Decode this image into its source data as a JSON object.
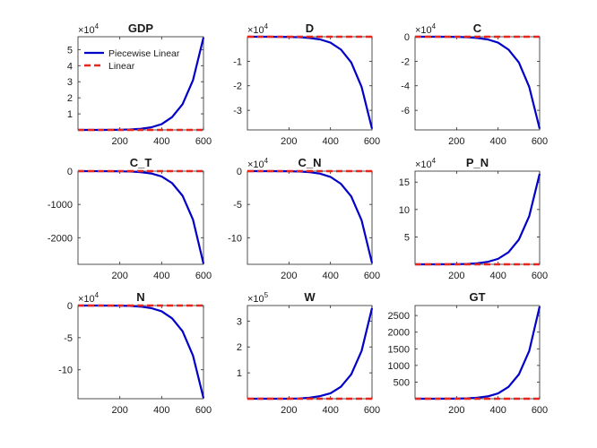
{
  "chart_data": [
    {
      "id": "gdp",
      "type": "line",
      "title": "GDP",
      "exponent": "4",
      "xlim": [
        0,
        600
      ],
      "ylim": [
        0,
        5.8
      ],
      "xticks": [
        200,
        400,
        600
      ],
      "yticks": [
        1,
        2,
        3,
        4,
        5
      ],
      "xticklabels": [
        "200",
        "400",
        "600"
      ],
      "yticklabels": [
        "1",
        "2",
        "3",
        "4",
        "5"
      ],
      "x": [
        0,
        100,
        200,
        250,
        300,
        350,
        400,
        450,
        500,
        550,
        600
      ],
      "series": [
        {
          "name": "Piecewise Linear",
          "values": [
            0,
            0.0,
            0.01,
            0.03,
            0.07,
            0.16,
            0.36,
            0.8,
            1.6,
            3.1,
            5.75
          ]
        },
        {
          "name": "Linear",
          "values": [
            0,
            0,
            0,
            0,
            0,
            0,
            0,
            0,
            0,
            0,
            0
          ]
        }
      ],
      "legend": {
        "position": "top-left",
        "entries": [
          "Piecewise Linear",
          "Linear"
        ]
      }
    },
    {
      "id": "d",
      "type": "line",
      "title": "D",
      "exponent": "4",
      "xlim": [
        0,
        600
      ],
      "ylim": [
        -3.8,
        0
      ],
      "xticks": [
        200,
        400,
        600
      ],
      "yticks": [
        -1,
        -2,
        -3
      ],
      "xticklabels": [
        "200",
        "400",
        "600"
      ],
      "yticklabels": [
        "-1",
        "-2",
        "-3"
      ],
      "x": [
        0,
        100,
        200,
        250,
        300,
        350,
        400,
        450,
        500,
        550,
        600
      ],
      "series": [
        {
          "name": "Piecewise Linear",
          "values": [
            0,
            0.0,
            -0.01,
            -0.02,
            -0.05,
            -0.11,
            -0.24,
            -0.52,
            -1.05,
            -2.05,
            -3.75
          ]
        },
        {
          "name": "Linear",
          "values": [
            0,
            0,
            0,
            0,
            0,
            0,
            0,
            0,
            0,
            0,
            0
          ]
        }
      ]
    },
    {
      "id": "c",
      "type": "line",
      "title": "C",
      "exponent": "4",
      "xlim": [
        0,
        600
      ],
      "ylim": [
        -7.6,
        0
      ],
      "xticks": [
        200,
        400,
        600
      ],
      "yticks": [
        0,
        -2,
        -4,
        -6
      ],
      "xticklabels": [
        "200",
        "400",
        "600"
      ],
      "yticklabels": [
        "0",
        "-2",
        "-4",
        "-6"
      ],
      "x": [
        0,
        100,
        200,
        250,
        300,
        350,
        400,
        450,
        500,
        550,
        600
      ],
      "series": [
        {
          "name": "Piecewise Linear",
          "values": [
            0,
            0.0,
            -0.01,
            -0.04,
            -0.1,
            -0.22,
            -0.48,
            -1.05,
            -2.1,
            -4.1,
            -7.5
          ]
        },
        {
          "name": "Linear",
          "values": [
            0,
            0,
            0,
            0,
            0,
            0,
            0,
            0,
            0,
            0,
            0
          ]
        }
      ]
    },
    {
      "id": "c_t",
      "type": "line",
      "title": "C_T",
      "exponent": "",
      "xlim": [
        0,
        600
      ],
      "ylim": [
        -2800,
        0
      ],
      "xticks": [
        200,
        400,
        600
      ],
      "yticks": [
        0,
        -1000,
        -2000
      ],
      "xticklabels": [
        "200",
        "400",
        "600"
      ],
      "yticklabels": [
        "0",
        "-1000",
        "-2000"
      ],
      "x": [
        0,
        100,
        200,
        250,
        300,
        350,
        400,
        450,
        500,
        550,
        600
      ],
      "series": [
        {
          "name": "Piecewise Linear",
          "values": [
            0,
            -1,
            -5,
            -12,
            -30,
            -70,
            -160,
            -360,
            -740,
            -1460,
            -2780
          ]
        },
        {
          "name": "Linear",
          "values": [
            0,
            0,
            0,
            0,
            0,
            0,
            0,
            0,
            0,
            0,
            0
          ]
        }
      ]
    },
    {
      "id": "c_n",
      "type": "line",
      "title": "C_N",
      "exponent": "4",
      "xlim": [
        0,
        600
      ],
      "ylim": [
        -14,
        0
      ],
      "xticks": [
        200,
        400,
        600
      ],
      "yticks": [
        0,
        -5,
        -10
      ],
      "xticklabels": [
        "200",
        "400",
        "600"
      ],
      "yticklabels": [
        "0",
        "-5",
        "-10"
      ],
      "x": [
        0,
        100,
        200,
        250,
        300,
        350,
        400,
        450,
        500,
        550,
        600
      ],
      "series": [
        {
          "name": "Piecewise Linear",
          "values": [
            0,
            0.0,
            -0.02,
            -0.06,
            -0.16,
            -0.38,
            -0.86,
            -1.9,
            -3.8,
            -7.4,
            -13.8
          ]
        },
        {
          "name": "Linear",
          "values": [
            0,
            0,
            0,
            0,
            0,
            0,
            0,
            0,
            0,
            0,
            0
          ]
        }
      ]
    },
    {
      "id": "p_n",
      "type": "line",
      "title": "P_N",
      "exponent": "4",
      "xlim": [
        0,
        600
      ],
      "ylim": [
        0,
        17
      ],
      "xticks": [
        200,
        400,
        600
      ],
      "yticks": [
        5,
        10,
        15
      ],
      "xticklabels": [
        "200",
        "400",
        "600"
      ],
      "yticklabels": [
        "5",
        "10",
        "15"
      ],
      "x": [
        0,
        100,
        200,
        250,
        300,
        350,
        400,
        450,
        500,
        550,
        600
      ],
      "series": [
        {
          "name": "Piecewise Linear",
          "values": [
            0,
            0.0,
            0.02,
            0.07,
            0.19,
            0.45,
            1.0,
            2.2,
            4.5,
            8.8,
            16.5
          ]
        },
        {
          "name": "Linear",
          "values": [
            0,
            0,
            0,
            0,
            0,
            0,
            0,
            0,
            0,
            0,
            0
          ]
        }
      ]
    },
    {
      "id": "n",
      "type": "line",
      "title": "N",
      "exponent": "4",
      "xlim": [
        0,
        600
      ],
      "ylim": [
        -14.5,
        0
      ],
      "xticks": [
        200,
        400,
        600
      ],
      "yticks": [
        0,
        -5,
        -10
      ],
      "xticklabels": [
        "200",
        "400",
        "600"
      ],
      "yticklabels": [
        "0",
        "-5",
        "-10"
      ],
      "x": [
        0,
        100,
        200,
        250,
        300,
        350,
        400,
        450,
        500,
        550,
        600
      ],
      "series": [
        {
          "name": "Piecewise Linear",
          "values": [
            0,
            0.0,
            -0.02,
            -0.06,
            -0.17,
            -0.4,
            -0.9,
            -2.0,
            -4.0,
            -7.8,
            -14.4
          ]
        },
        {
          "name": "Linear",
          "values": [
            0,
            0,
            0,
            0,
            0,
            0,
            0,
            0,
            0,
            0,
            0
          ]
        }
      ]
    },
    {
      "id": "w",
      "type": "line",
      "title": "W",
      "exponent": "5",
      "xlim": [
        0,
        600
      ],
      "ylim": [
        0,
        3.6
      ],
      "xticks": [
        200,
        400,
        600
      ],
      "yticks": [
        1,
        2,
        3
      ],
      "xticklabels": [
        "200",
        "400",
        "600"
      ],
      "yticklabels": [
        "1",
        "2",
        "3"
      ],
      "x": [
        0,
        100,
        200,
        250,
        300,
        350,
        400,
        450,
        500,
        550,
        600
      ],
      "series": [
        {
          "name": "Piecewise Linear",
          "values": [
            0,
            0.0,
            0.0,
            0.01,
            0.04,
            0.1,
            0.21,
            0.46,
            0.94,
            1.85,
            3.5
          ]
        },
        {
          "name": "Linear",
          "values": [
            0,
            0,
            0,
            0,
            0,
            0,
            0,
            0,
            0,
            0,
            0
          ]
        }
      ]
    },
    {
      "id": "gt",
      "type": "line",
      "title": "GT",
      "exponent": "",
      "xlim": [
        0,
        600
      ],
      "ylim": [
        0,
        2800
      ],
      "xticks": [
        200,
        400,
        600
      ],
      "yticks": [
        500,
        1000,
        1500,
        2000,
        2500
      ],
      "xticklabels": [
        "200",
        "400",
        "600"
      ],
      "yticklabels": [
        "500",
        "1000",
        "1500",
        "2000",
        "2500"
      ],
      "x": [
        0,
        100,
        200,
        250,
        300,
        350,
        400,
        450,
        500,
        550,
        600
      ],
      "series": [
        {
          "name": "Piecewise Linear",
          "values": [
            0,
            0,
            4,
            12,
            30,
            70,
            160,
            355,
            730,
            1440,
            2770
          ]
        },
        {
          "name": "Linear",
          "values": [
            0,
            0,
            0,
            0,
            0,
            0,
            0,
            0,
            0,
            0,
            0
          ]
        }
      ]
    }
  ],
  "colors": {
    "piecewise": "#0000c8",
    "linear": "#e6261f",
    "axes": "#262626"
  },
  "exponent_base": "×10"
}
